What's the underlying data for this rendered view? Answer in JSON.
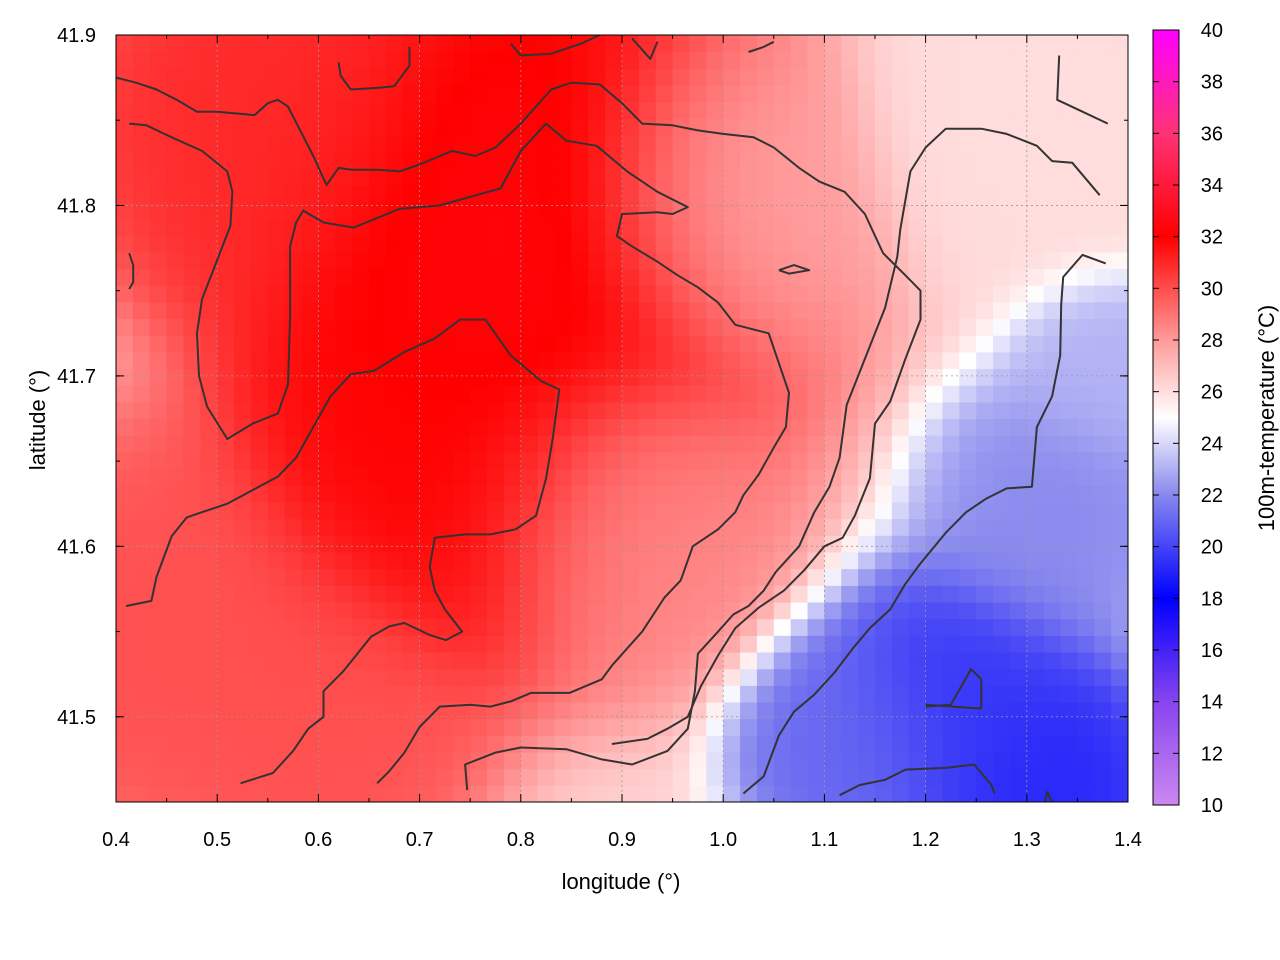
{
  "chart_data": {
    "type": "heatmap",
    "title": "",
    "xlabel": "longitude (°)",
    "ylabel": "latitude (°)",
    "colorbar_label": "100m-temperature (°C)",
    "xlim": [
      0.4,
      1.4
    ],
    "ylim": [
      41.45,
      41.9
    ],
    "x_ticks": [
      0.4,
      0.5,
      0.6,
      0.7,
      0.8,
      0.9,
      1.0,
      1.1,
      1.2,
      1.3,
      1.4
    ],
    "x_tick_labels": [
      "0.4",
      "0.5",
      "0.6",
      "0.7",
      "0.8",
      "0.9",
      "1.0",
      "1.1",
      "1.2",
      "1.3",
      "1.4"
    ],
    "y_ticks": [
      41.5,
      41.6,
      41.7,
      41.8,
      41.9
    ],
    "y_tick_labels": [
      "41.5",
      "41.6",
      "41.7",
      "41.8",
      "41.9"
    ],
    "colorbar_range": [
      10,
      40
    ],
    "colorbar_ticks": [
      10,
      12,
      14,
      16,
      18,
      20,
      22,
      24,
      26,
      28,
      30,
      32,
      34,
      36,
      38,
      40
    ],
    "colorbar_tick_labels": [
      "10",
      "12",
      "14",
      "16",
      "18",
      "20",
      "22",
      "24",
      "26",
      "28",
      "30",
      "32",
      "34",
      "36",
      "38",
      "40"
    ],
    "colormap": [
      {
        "value": 10,
        "color": "#cc88f0"
      },
      {
        "value": 14,
        "color": "#8844ee"
      },
      {
        "value": 18,
        "color": "#0000ff"
      },
      {
        "value": 22,
        "color": "#8888ee"
      },
      {
        "value": 25,
        "color": "#ffffff"
      },
      {
        "value": 28,
        "color": "#ff9a9a"
      },
      {
        "value": 32,
        "color": "#ff0000"
      },
      {
        "value": 36,
        "color": "#ff3377"
      },
      {
        "value": 40,
        "color": "#ff00ff"
      }
    ],
    "grid": true,
    "field_centers": [
      {
        "lon": 0.8,
        "lat": 41.78,
        "value": 32.5,
        "radius": 0.17
      },
      {
        "lon": 0.72,
        "lat": 41.65,
        "value": 32,
        "radius": 0.13
      },
      {
        "lon": 0.55,
        "lat": 41.85,
        "value": 31,
        "radius": 0.12
      },
      {
        "lon": 0.45,
        "lat": 41.55,
        "value": 30,
        "radius": 0.12
      },
      {
        "lon": 0.6,
        "lat": 41.5,
        "value": 30,
        "radius": 0.1
      },
      {
        "lon": 0.9,
        "lat": 41.62,
        "value": 28.5,
        "radius": 0.1
      },
      {
        "lon": 1.0,
        "lat": 41.8,
        "value": 27.5,
        "radius": 0.1
      },
      {
        "lon": 1.3,
        "lat": 41.85,
        "value": 26,
        "radius": 0.1
      },
      {
        "lon": 1.24,
        "lat": 41.5,
        "value": 19.5,
        "radius": 0.09
      },
      {
        "lon": 1.32,
        "lat": 41.46,
        "value": 19,
        "radius": 0.07
      },
      {
        "lon": 1.13,
        "lat": 41.48,
        "value": 21,
        "radius": 0.07
      },
      {
        "lon": 1.33,
        "lat": 41.62,
        "value": 22,
        "radius": 0.08
      },
      {
        "lon": 1.38,
        "lat": 41.7,
        "value": 23,
        "radius": 0.06
      }
    ],
    "contours": [
      [
        [
          0.4,
          41.875
        ],
        [
          0.42,
          41.872
        ],
        [
          0.44,
          41.868
        ],
        [
          0.46,
          41.862
        ],
        [
          0.48,
          41.855
        ],
        [
          0.5,
          41.855
        ],
        [
          0.537,
          41.853
        ],
        [
          0.55,
          41.86
        ],
        [
          0.56,
          41.862
        ],
        [
          0.57,
          41.858
        ],
        [
          0.595,
          41.829
        ],
        [
          0.608,
          41.812
        ],
        [
          0.62,
          41.822
        ],
        [
          0.633,
          41.821
        ],
        [
          0.658,
          41.821
        ],
        [
          0.68,
          41.82
        ],
        [
          0.7,
          41.824
        ],
        [
          0.732,
          41.832
        ],
        [
          0.755,
          41.829
        ],
        [
          0.775,
          41.834
        ],
        [
          0.8,
          41.848
        ],
        [
          0.83,
          41.868
        ],
        [
          0.85,
          41.872
        ],
        [
          0.878,
          41.871
        ],
        [
          0.9,
          41.86
        ],
        [
          0.92,
          41.848
        ],
        [
          0.95,
          41.847
        ],
        [
          0.975,
          41.844
        ],
        [
          1.0,
          41.842
        ],
        [
          1.03,
          41.84
        ],
        [
          1.05,
          41.834
        ],
        [
          1.075,
          41.822
        ],
        [
          1.095,
          41.814
        ],
        [
          1.12,
          41.808
        ],
        [
          1.14,
          41.795
        ],
        [
          1.158,
          41.772
        ],
        [
          1.18,
          41.759
        ],
        [
          1.195,
          41.75
        ],
        [
          1.195,
          41.733
        ],
        [
          1.18,
          41.71
        ],
        [
          1.165,
          41.685
        ],
        [
          1.15,
          41.672
        ],
        [
          1.145,
          41.64
        ],
        [
          1.13,
          41.618
        ],
        [
          1.118,
          41.605
        ],
        [
          1.1,
          41.6
        ],
        [
          1.08,
          41.586
        ],
        [
          1.06,
          41.574
        ],
        [
          1.035,
          41.564
        ],
        [
          1.012,
          41.552
        ],
        [
          0.995,
          41.536
        ],
        [
          0.978,
          41.518
        ],
        [
          0.965,
          41.5
        ],
        [
          0.945,
          41.493
        ],
        [
          0.925,
          41.487
        ],
        [
          0.89,
          41.484
        ]
      ],
      [
        [
          0.413,
          41.848
        ],
        [
          0.43,
          41.847
        ],
        [
          0.455,
          41.84
        ],
        [
          0.485,
          41.832
        ],
        [
          0.51,
          41.82
        ],
        [
          0.515,
          41.808
        ],
        [
          0.513,
          41.788
        ],
        [
          0.5,
          41.768
        ],
        [
          0.485,
          41.745
        ],
        [
          0.48,
          41.725
        ],
        [
          0.482,
          41.7
        ],
        [
          0.49,
          41.682
        ],
        [
          0.51,
          41.663
        ],
        [
          0.535,
          41.672
        ],
        [
          0.56,
          41.678
        ],
        [
          0.57,
          41.695
        ],
        [
          0.572,
          41.735
        ],
        [
          0.572,
          41.776
        ],
        [
          0.578,
          41.79
        ],
        [
          0.585,
          41.797
        ],
        [
          0.605,
          41.79
        ],
        [
          0.635,
          41.787
        ],
        [
          0.68,
          41.798
        ],
        [
          0.72,
          41.8
        ],
        [
          0.78,
          41.81
        ],
        [
          0.8,
          41.832
        ],
        [
          0.825,
          41.848
        ],
        [
          0.845,
          41.838
        ],
        [
          0.875,
          41.835
        ],
        [
          0.905,
          41.82
        ],
        [
          0.935,
          41.808
        ],
        [
          0.965,
          41.799
        ],
        [
          0.95,
          41.795
        ],
        [
          0.935,
          41.796
        ],
        [
          0.9,
          41.795
        ],
        [
          0.895,
          41.782
        ],
        [
          0.91,
          41.776
        ],
        [
          0.935,
          41.767
        ],
        [
          0.955,
          41.759
        ],
        [
          0.975,
          41.752
        ],
        [
          0.995,
          41.743
        ],
        [
          1.012,
          41.73
        ],
        [
          1.045,
          41.725
        ],
        [
          1.065,
          41.69
        ],
        [
          1.062,
          41.67
        ],
        [
          1.05,
          41.658
        ],
        [
          1.035,
          41.642
        ],
        [
          1.02,
          41.63
        ],
        [
          1.012,
          41.62
        ],
        [
          0.995,
          41.61
        ],
        [
          0.97,
          41.6
        ],
        [
          0.958,
          41.58
        ],
        [
          0.942,
          41.57
        ],
        [
          0.92,
          41.55
        ],
        [
          0.89,
          41.53
        ],
        [
          0.88,
          41.522
        ],
        [
          0.848,
          41.514
        ],
        [
          0.81,
          41.514
        ],
        [
          0.79,
          41.509
        ],
        [
          0.77,
          41.506
        ],
        [
          0.75,
          41.507
        ],
        [
          0.72,
          41.506
        ],
        [
          0.7,
          41.494
        ],
        [
          0.685,
          41.479
        ],
        [
          0.67,
          41.468
        ],
        [
          0.658,
          41.461
        ]
      ],
      [
        [
          0.41,
          41.565
        ],
        [
          0.435,
          41.568
        ],
        [
          0.44,
          41.582
        ],
        [
          0.455,
          41.606
        ],
        [
          0.47,
          41.617
        ],
        [
          0.485,
          41.62
        ],
        [
          0.51,
          41.625
        ],
        [
          0.535,
          41.633
        ],
        [
          0.56,
          41.641
        ],
        [
          0.578,
          41.652
        ],
        [
          0.595,
          41.67
        ],
        [
          0.612,
          41.688
        ],
        [
          0.632,
          41.701
        ],
        [
          0.655,
          41.703
        ],
        [
          0.685,
          41.714
        ],
        [
          0.715,
          41.722
        ],
        [
          0.74,
          41.733
        ],
        [
          0.765,
          41.733
        ],
        [
          0.79,
          41.712
        ],
        [
          0.82,
          41.697
        ],
        [
          0.838,
          41.692
        ],
        [
          0.832,
          41.665
        ],
        [
          0.825,
          41.64
        ],
        [
          0.815,
          41.618
        ],
        [
          0.795,
          41.61
        ],
        [
          0.77,
          41.607
        ],
        [
          0.745,
          41.607
        ],
        [
          0.715,
          41.605
        ],
        [
          0.71,
          41.588
        ],
        [
          0.715,
          41.574
        ],
        [
          0.725,
          41.563
        ],
        [
          0.742,
          41.55
        ],
        [
          0.726,
          41.545
        ],
        [
          0.71,
          41.548
        ],
        [
          0.685,
          41.555
        ],
        [
          0.67,
          41.553
        ],
        [
          0.652,
          41.547
        ],
        [
          0.625,
          41.527
        ],
        [
          0.605,
          41.515
        ],
        [
          0.605,
          41.5
        ],
        [
          0.59,
          41.493
        ],
        [
          0.575,
          41.48
        ],
        [
          0.555,
          41.467
        ],
        [
          0.523,
          41.461
        ]
      ],
      [
        [
          0.747,
          41.457
        ],
        [
          0.745,
          41.472
        ],
        [
          0.775,
          41.479
        ],
        [
          0.8,
          41.482
        ],
        [
          0.845,
          41.481
        ],
        [
          0.88,
          41.475
        ],
        [
          0.91,
          41.472
        ],
        [
          0.945,
          41.48
        ],
        [
          0.965,
          41.493
        ],
        [
          0.972,
          41.515
        ],
        [
          0.975,
          41.537
        ],
        [
          0.995,
          41.55
        ],
        [
          1.01,
          41.56
        ],
        [
          1.025,
          41.565
        ],
        [
          1.04,
          41.574
        ],
        [
          1.052,
          41.585
        ],
        [
          1.075,
          41.6
        ],
        [
          1.09,
          41.62
        ],
        [
          1.105,
          41.635
        ],
        [
          1.115,
          41.652
        ],
        [
          1.122,
          41.683
        ],
        [
          1.14,
          41.71
        ],
        [
          1.16,
          41.74
        ],
        [
          1.172,
          41.77
        ],
        [
          1.175,
          41.786
        ],
        [
          1.185,
          41.82
        ],
        [
          1.2,
          41.834
        ],
        [
          1.22,
          41.845
        ],
        [
          1.255,
          41.845
        ],
        [
          1.28,
          41.842
        ],
        [
          1.31,
          41.835
        ],
        [
          1.325,
          41.826
        ],
        [
          1.345,
          41.825
        ],
        [
          1.372,
          41.806
        ]
      ],
      [
        [
          1.332,
          41.888
        ],
        [
          1.33,
          41.862
        ],
        [
          1.355,
          41.855
        ],
        [
          1.38,
          41.848
        ]
      ],
      [
        [
          0.62,
          41.884
        ],
        [
          0.622,
          41.876
        ],
        [
          0.632,
          41.868
        ],
        [
          0.66,
          41.869
        ],
        [
          0.675,
          41.87
        ],
        [
          0.69,
          41.882
        ],
        [
          0.69,
          41.893
        ]
      ],
      [
        [
          0.79,
          41.895
        ],
        [
          0.8,
          41.888
        ],
        [
          0.83,
          41.889
        ],
        [
          0.86,
          41.895
        ],
        [
          0.878,
          41.9
        ]
      ],
      [
        [
          0.91,
          41.898
        ],
        [
          0.928,
          41.886
        ],
        [
          0.935,
          41.896
        ]
      ],
      [
        [
          1.025,
          41.89
        ],
        [
          1.025,
          41.89
        ],
        [
          1.04,
          41.893
        ],
        [
          1.05,
          41.896
        ]
      ],
      [
        [
          1.055,
          41.762
        ],
        [
          1.07,
          41.765
        ],
        [
          1.085,
          41.762
        ],
        [
          1.065,
          41.76
        ],
        [
          1.055,
          41.762
        ]
      ],
      [
        [
          0.413,
          41.772
        ],
        [
          0.417,
          41.765
        ],
        [
          0.417,
          41.755
        ],
        [
          0.413,
          41.751
        ]
      ],
      [
        [
          1.02,
          41.455
        ],
        [
          1.04,
          41.465
        ],
        [
          1.055,
          41.489
        ],
        [
          1.07,
          41.503
        ],
        [
          1.09,
          41.513
        ],
        [
          1.11,
          41.526
        ],
        [
          1.128,
          41.54
        ],
        [
          1.145,
          41.552
        ],
        [
          1.165,
          41.563
        ],
        [
          1.18,
          41.578
        ],
        [
          1.195,
          41.59
        ],
        [
          1.22,
          41.608
        ],
        [
          1.24,
          41.62
        ],
        [
          1.26,
          41.628
        ],
        [
          1.28,
          41.634
        ],
        [
          1.305,
          41.635
        ],
        [
          1.31,
          41.67
        ],
        [
          1.325,
          41.688
        ],
        [
          1.333,
          41.712
        ],
        [
          1.334,
          41.742
        ],
        [
          1.336,
          41.758
        ],
        [
          1.355,
          41.771
        ],
        [
          1.378,
          41.766
        ]
      ],
      [
        [
          1.2,
          41.506
        ],
        [
          1.225,
          41.507
        ],
        [
          1.245,
          41.528
        ],
        [
          1.255,
          41.522
        ],
        [
          1.255,
          41.505
        ],
        [
          1.25,
          41.505
        ],
        [
          1.2,
          41.507
        ]
      ],
      [
        [
          1.115,
          41.454
        ],
        [
          1.135,
          41.46
        ],
        [
          1.16,
          41.463
        ],
        [
          1.18,
          41.469
        ],
        [
          1.22,
          41.47
        ],
        [
          1.248,
          41.472
        ],
        [
          1.265,
          41.46
        ],
        [
          1.268,
          41.455
        ]
      ],
      [
        [
          1.318,
          41.45
        ],
        [
          1.32,
          41.456
        ],
        [
          1.325,
          41.45
        ]
      ]
    ]
  }
}
